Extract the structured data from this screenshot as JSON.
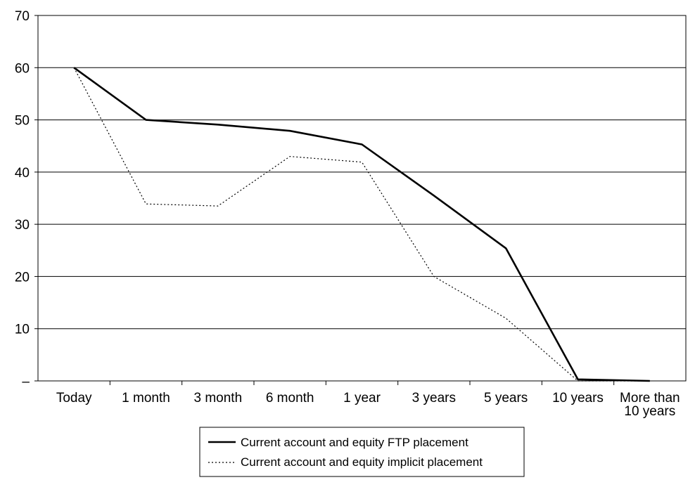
{
  "chart_data": {
    "type": "line",
    "categories": [
      "Today",
      "1 month",
      "3 month",
      "6 month",
      "1 year",
      "3 years",
      "5 years",
      "10 years",
      "More than 10 years"
    ],
    "category_label_lines": [
      [
        "Today"
      ],
      [
        "1 month"
      ],
      [
        "3 month"
      ],
      [
        "6 month"
      ],
      [
        "1 year"
      ],
      [
        "3 years"
      ],
      [
        "5 years"
      ],
      [
        "10 years"
      ],
      [
        "More than",
        "10 years"
      ]
    ],
    "y_tick_labels": [
      "–",
      "10",
      "20",
      "30",
      "40",
      "50",
      "60",
      "70"
    ],
    "ylim": [
      0,
      70
    ],
    "grid": true,
    "legend_position": "bottom",
    "series": [
      {
        "name": "Current account and equity FTP placement",
        "style": "solid",
        "color": "#000000",
        "values": [
          60,
          50,
          49.1,
          47.9,
          45.3,
          35.5,
          25.4,
          0.3,
          0
        ]
      },
      {
        "name": "Current account and equity implicit placement",
        "style": "dotted",
        "color": "#000000",
        "values": [
          60,
          33.9,
          33.5,
          43,
          41.9,
          20,
          12,
          0,
          0
        ]
      }
    ]
  }
}
